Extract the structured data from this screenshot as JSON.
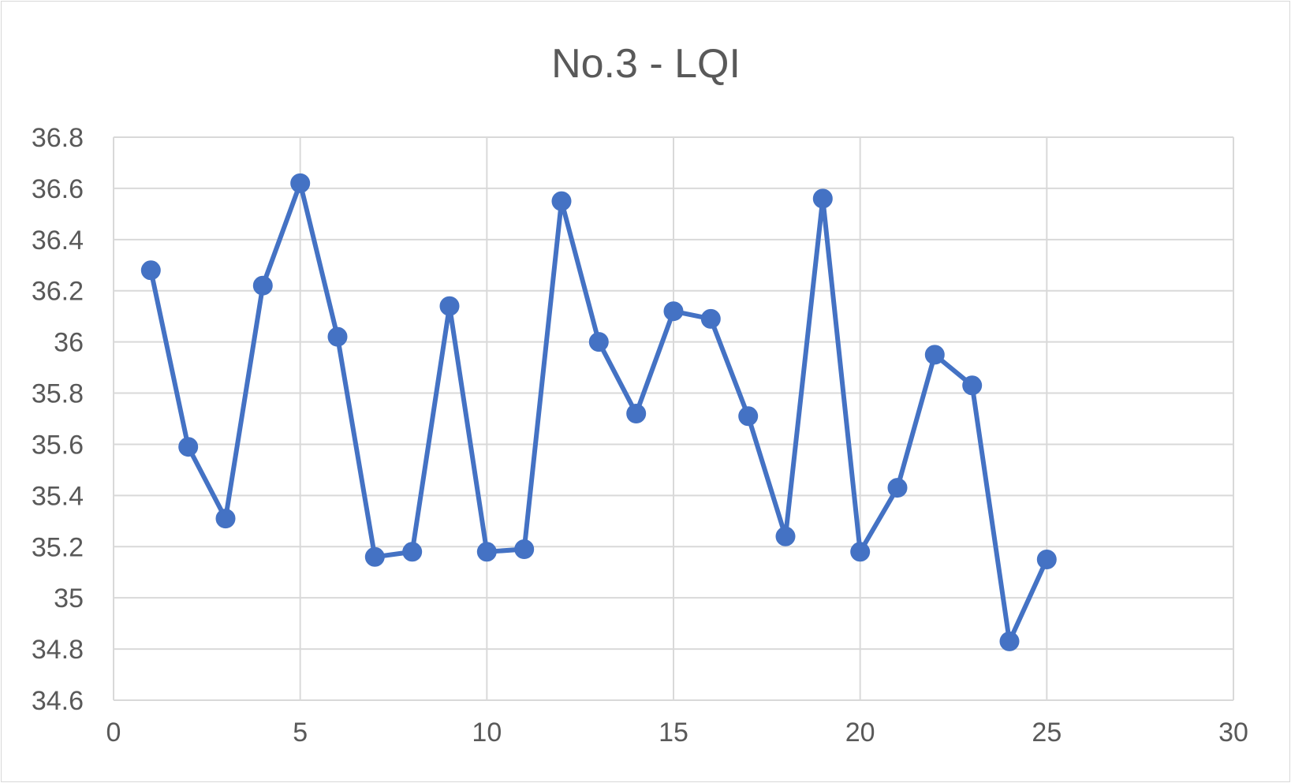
{
  "chart_data": {
    "type": "scatter",
    "title": "No.3 - LQI",
    "xlabel": "",
    "ylabel": "",
    "xlim": [
      0,
      30
    ],
    "ylim": [
      34.6,
      36.8
    ],
    "xticks": [
      0,
      5,
      10,
      15,
      20,
      25,
      30
    ],
    "xtick_labels": [
      "0",
      "5",
      "10",
      "15",
      "20",
      "25",
      "30"
    ],
    "yticks": [
      34.6,
      34.8,
      35,
      35.2,
      35.4,
      35.6,
      35.8,
      36,
      36.2,
      36.4,
      36.6,
      36.8
    ],
    "ytick_labels": [
      "34.6",
      "34.8",
      "35",
      "35.2",
      "35.4",
      "35.6",
      "35.8",
      "36",
      "36.2",
      "36.4",
      "36.6",
      "36.8"
    ],
    "grid": true,
    "legend": "none",
    "series": [
      {
        "color": "#4472c4",
        "marker": "circle",
        "line": "straight",
        "points": [
          {
            "x": 1,
            "y": 36.28
          },
          {
            "x": 2,
            "y": 35.59
          },
          {
            "x": 3,
            "y": 35.31
          },
          {
            "x": 4,
            "y": 36.22
          },
          {
            "x": 5,
            "y": 36.62
          },
          {
            "x": 6,
            "y": 36.02
          },
          {
            "x": 7,
            "y": 35.16
          },
          {
            "x": 8,
            "y": 35.18
          },
          {
            "x": 9,
            "y": 36.14
          },
          {
            "x": 10,
            "y": 35.18
          },
          {
            "x": 11,
            "y": 35.19
          },
          {
            "x": 12,
            "y": 36.55
          },
          {
            "x": 13,
            "y": 36.0
          },
          {
            "x": 14,
            "y": 35.72
          },
          {
            "x": 15,
            "y": 36.12
          },
          {
            "x": 16,
            "y": 36.09
          },
          {
            "x": 17,
            "y": 35.71
          },
          {
            "x": 18,
            "y": 35.24
          },
          {
            "x": 19,
            "y": 36.56
          },
          {
            "x": 20,
            "y": 35.18
          },
          {
            "x": 21,
            "y": 35.43
          },
          {
            "x": 22,
            "y": 35.95
          },
          {
            "x": 23,
            "y": 35.83
          },
          {
            "x": 24,
            "y": 34.83
          },
          {
            "x": 25,
            "y": 35.15
          }
        ]
      }
    ]
  }
}
